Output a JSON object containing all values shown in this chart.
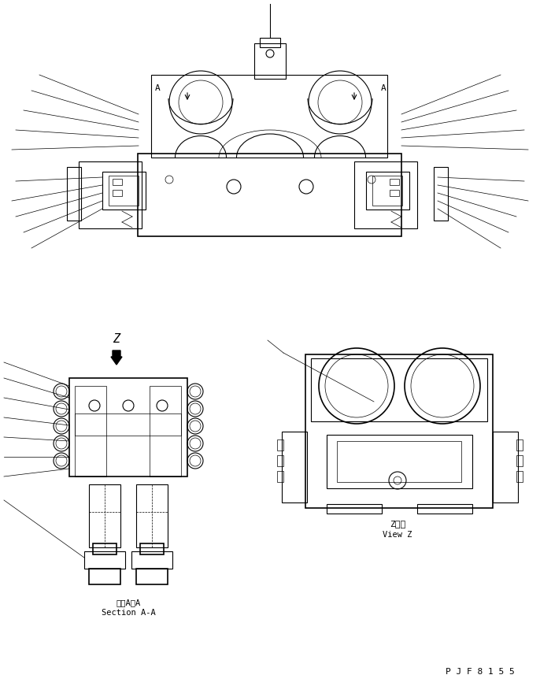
{
  "bg_color": "#ffffff",
  "line_color": "#000000",
  "line_width": 0.8,
  "thin_line": 0.5,
  "thick_line": 1.2,
  "fig_width": 6.86,
  "fig_height": 8.71,
  "label_section_jp": "断面A－A",
  "label_section_en": "Section A-A",
  "label_viewz_jp": "Z　視",
  "label_viewz_en": "View Z",
  "part_number": "P J F 8 1 5 5"
}
